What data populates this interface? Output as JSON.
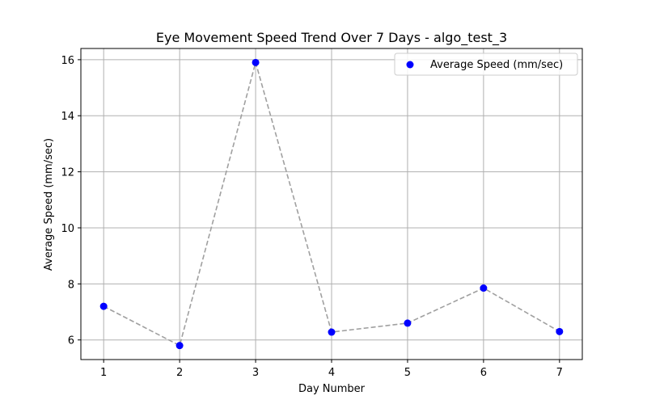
{
  "chart_data": {
    "type": "scatter",
    "title": "Eye Movement Speed Trend Over 7 Days - algo_test_3",
    "xlabel": "Day Number",
    "ylabel": "Average Speed (mm/sec)",
    "x": [
      1,
      2,
      3,
      4,
      5,
      6,
      7
    ],
    "xlim": [
      0.7,
      7.3
    ],
    "ylim": [
      5.3,
      16.4
    ],
    "xticks": [
      "1",
      "2",
      "3",
      "4",
      "5",
      "6",
      "7"
    ],
    "yticks": [
      "6",
      "8",
      "10",
      "12",
      "14",
      "16"
    ],
    "grid": true,
    "legend_position": "top-right",
    "series": [
      {
        "name": "Average Speed (mm/sec)",
        "values": [
          7.2,
          5.8,
          15.9,
          6.28,
          6.6,
          7.85,
          6.3
        ],
        "marker_color": "#0000ff",
        "connector_style": "dashed",
        "connector_color": "#a0a0a0"
      }
    ]
  }
}
